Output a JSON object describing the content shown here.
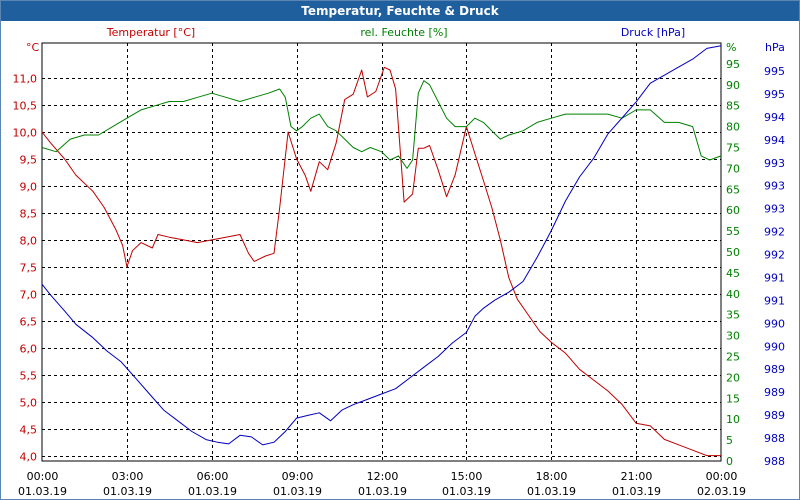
{
  "window": {
    "title": "Temperatur, Feuchte & Druck"
  },
  "chart_data": {
    "type": "line",
    "title": "Temperatur, Feuchte & Druck",
    "colors": {
      "temperature": "#c00000",
      "humidity": "#008000",
      "pressure": "#0000c0"
    },
    "x_axis": {
      "range_hours": [
        0,
        24
      ],
      "ticks": [
        {
          "h": 0,
          "time": "00:00",
          "date": "01.03.19"
        },
        {
          "h": 3,
          "time": "03:00",
          "date": "01.03.19"
        },
        {
          "h": 6,
          "time": "06:00",
          "date": "01.03.19"
        },
        {
          "h": 9,
          "time": "09:00",
          "date": "01.03.19"
        },
        {
          "h": 12,
          "time": "12:00",
          "date": "01.03.19"
        },
        {
          "h": 15,
          "time": "15:00",
          "date": "01.03.19"
        },
        {
          "h": 18,
          "time": "18:00",
          "date": "01.03.19"
        },
        {
          "h": 21,
          "time": "21:00",
          "date": "01.03.19"
        },
        {
          "h": 24,
          "time": "00:00",
          "date": "02.03.19"
        }
      ]
    },
    "left_axis": {
      "label": "Temperatur [°C]",
      "unit": "°C",
      "range": [
        3.9,
        11.65
      ],
      "ticks": [
        {
          "v": 4.0,
          "label": "4,0"
        },
        {
          "v": 4.5,
          "label": "4,5"
        },
        {
          "v": 5.0,
          "label": "5,0"
        },
        {
          "v": 5.5,
          "label": "5,5"
        },
        {
          "v": 6.0,
          "label": "6,0"
        },
        {
          "v": 6.5,
          "label": "6,5"
        },
        {
          "v": 7.0,
          "label": "7,0"
        },
        {
          "v": 7.5,
          "label": "7,5"
        },
        {
          "v": 8.0,
          "label": "8,0"
        },
        {
          "v": 8.5,
          "label": "8,5"
        },
        {
          "v": 9.0,
          "label": "9,0"
        },
        {
          "v": 9.5,
          "label": "9,5"
        },
        {
          "v": 10.0,
          "label": "10,0"
        },
        {
          "v": 10.5,
          "label": "10,5"
        },
        {
          "v": 11.0,
          "label": "11,0"
        }
      ]
    },
    "humidity_axis": {
      "label": "rel. Feuchte [%]",
      "unit": "%",
      "range": [
        0,
        100
      ],
      "ticks": [
        {
          "v": 0,
          "label": "0"
        },
        {
          "v": 5,
          "label": "5"
        },
        {
          "v": 10,
          "label": "10"
        },
        {
          "v": 15,
          "label": "15"
        },
        {
          "v": 20,
          "label": "20"
        },
        {
          "v": 25,
          "label": "25"
        },
        {
          "v": 30,
          "label": "30"
        },
        {
          "v": 35,
          "label": "35"
        },
        {
          "v": 40,
          "label": "40"
        },
        {
          "v": 45,
          "label": "45"
        },
        {
          "v": 50,
          "label": "50"
        },
        {
          "v": 55,
          "label": "55"
        },
        {
          "v": 60,
          "label": "60"
        },
        {
          "v": 65,
          "label": "65"
        },
        {
          "v": 70,
          "label": "70"
        },
        {
          "v": 75,
          "label": "75"
        },
        {
          "v": 80,
          "label": "80"
        },
        {
          "v": 85,
          "label": "85"
        },
        {
          "v": 90,
          "label": "90"
        },
        {
          "v": 95,
          "label": "95"
        }
      ]
    },
    "pressure_axis": {
      "label": "Druck [hPa]",
      "unit": "hPa",
      "range": [
        987.8,
        995.6
      ],
      "tick_labels": [
        "988",
        "988",
        "989",
        "989",
        "989",
        "990",
        "990",
        "991",
        "991",
        "992",
        "992",
        "993",
        "993",
        "993",
        "994",
        "994",
        "995",
        "995"
      ]
    },
    "series": [
      {
        "name": "Temperatur",
        "x": [
          0,
          0.3,
          0.8,
          1.2,
          1.8,
          2.2,
          2.6,
          2.85,
          3.0,
          3.2,
          3.5,
          3.9,
          4.1,
          4.5,
          5.0,
          5.5,
          6.0,
          6.5,
          7.0,
          7.3,
          7.5,
          7.9,
          8.2,
          8.4,
          8.7,
          9.0,
          9.3,
          9.5,
          9.8,
          10.1,
          10.4,
          10.7,
          11.0,
          11.3,
          11.5,
          11.8,
          12.1,
          12.3,
          12.5,
          12.8,
          13.1,
          13.3,
          13.5,
          13.7,
          14.0,
          14.3,
          14.6,
          15.0,
          15.3,
          15.6,
          15.9,
          16.2,
          16.5,
          16.8,
          17.2,
          17.6,
          18.0,
          18.5,
          19.0,
          19.5,
          20.0,
          20.5,
          21.0,
          21.5,
          22.0,
          22.5,
          23.0,
          23.5,
          24.0
        ],
        "y": [
          10.0,
          9.8,
          9.5,
          9.2,
          8.9,
          8.6,
          8.2,
          7.9,
          7.5,
          7.8,
          7.95,
          7.85,
          8.1,
          8.05,
          8.0,
          7.95,
          8.0,
          8.05,
          8.1,
          7.75,
          7.6,
          7.7,
          7.75,
          8.6,
          10.0,
          9.5,
          9.2,
          8.9,
          9.45,
          9.3,
          9.8,
          10.6,
          10.7,
          11.15,
          10.65,
          10.75,
          11.2,
          11.15,
          10.8,
          8.7,
          8.85,
          9.7,
          9.7,
          9.75,
          9.3,
          8.8,
          9.2,
          10.1,
          9.6,
          9.1,
          8.6,
          8.0,
          7.3,
          6.9,
          6.6,
          6.3,
          6.1,
          5.9,
          5.6,
          5.4,
          5.2,
          4.95,
          4.6,
          4.55,
          4.3,
          4.2,
          4.1,
          4.0,
          4.0
        ]
      },
      {
        "name": "rel. Feuchte",
        "x": [
          0,
          0.5,
          1.0,
          1.5,
          2.0,
          2.5,
          3.0,
          3.5,
          4.0,
          4.5,
          5.0,
          5.5,
          6.0,
          6.5,
          7.0,
          7.5,
          8.0,
          8.4,
          8.6,
          8.8,
          9.0,
          9.2,
          9.5,
          9.8,
          10.1,
          10.4,
          10.7,
          11.0,
          11.3,
          11.6,
          12.0,
          12.3,
          12.6,
          12.9,
          13.1,
          13.3,
          13.5,
          13.7,
          14.0,
          14.3,
          14.6,
          15.0,
          15.3,
          15.6,
          15.9,
          16.2,
          16.5,
          17.0,
          17.5,
          18.0,
          18.5,
          19.0,
          19.5,
          20.0,
          20.5,
          21.0,
          21.5,
          22.0,
          22.5,
          23.0,
          23.3,
          23.6,
          24.0
        ],
        "y": [
          75,
          74,
          77,
          78,
          78,
          80,
          82,
          84,
          85,
          86,
          86,
          87,
          88,
          87,
          86,
          87,
          88,
          89,
          87,
          80,
          79,
          80,
          82,
          83,
          80,
          79,
          77,
          75,
          74,
          75,
          74,
          72,
          73,
          70,
          72,
          88,
          91,
          90,
          86,
          82,
          80,
          80,
          82,
          81,
          79,
          77,
          78,
          79,
          81,
          82,
          83,
          83,
          83,
          83,
          82,
          84,
          84,
          81,
          81,
          80,
          73,
          72,
          73
        ]
      },
      {
        "name": "Druck",
        "x": [
          0,
          0.3,
          0.8,
          1.2,
          1.8,
          2.3,
          2.8,
          3.3,
          3.8,
          4.3,
          4.8,
          5.3,
          5.8,
          6.2,
          6.6,
          7.0,
          7.4,
          7.8,
          8.2,
          8.6,
          9.0,
          9.4,
          9.8,
          10.2,
          10.6,
          11.0,
          11.5,
          12.0,
          12.5,
          13.0,
          13.5,
          14.0,
          14.5,
          15.0,
          15.3,
          15.6,
          16.0,
          16.5,
          17.0,
          17.5,
          18.0,
          18.5,
          19.0,
          19.5,
          20.0,
          20.5,
          21.0,
          21.5,
          22.0,
          22.5,
          23.0,
          23.5,
          24.0
        ],
        "y": [
          991.1,
          990.9,
          990.6,
          990.35,
          990.1,
          989.85,
          989.65,
          989.35,
          989.05,
          988.75,
          988.55,
          988.35,
          988.2,
          988.15,
          988.12,
          988.28,
          988.25,
          988.1,
          988.15,
          988.35,
          988.6,
          988.65,
          988.7,
          988.55,
          988.75,
          988.85,
          988.95,
          989.05,
          989.15,
          989.35,
          989.55,
          989.75,
          990.0,
          990.2,
          990.5,
          990.65,
          990.8,
          990.95,
          991.15,
          991.6,
          992.1,
          992.65,
          993.1,
          993.45,
          993.9,
          994.2,
          994.5,
          994.85,
          995.0,
          995.15,
          995.3,
          995.5,
          995.55
        ]
      }
    ]
  }
}
